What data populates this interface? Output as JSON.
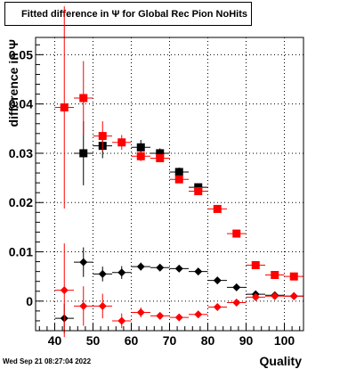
{
  "title": "Fitted difference in  Ψ  for Global Rec Pion NoHits",
  "timestamp": "Wed Sep 21 08:27:04 2022",
  "chart_data": {
    "type": "scatter",
    "xlabel": "Quality",
    "ylabel": "difference in Ψ",
    "xlim": [
      35,
      105
    ],
    "ylim": [
      -0.006,
      0.0535
    ],
    "xticks": [
      40,
      50,
      60,
      70,
      80,
      90,
      100
    ],
    "yticks": [
      0,
      0.01,
      0.02,
      0.03,
      0.04,
      0.05
    ],
    "ytick_labels": [
      "0",
      "0.01",
      "0.02",
      "0.03",
      "0.04",
      "0.05"
    ],
    "grid": true,
    "series": [
      {
        "color": "#000000",
        "marker": "square",
        "x": [
          47.5,
          52.5,
          62.5,
          67.5,
          72.5,
          77.5
        ],
        "y": [
          0.03,
          0.0315,
          0.0312,
          0.03,
          0.0262,
          0.0231
        ],
        "yerr": [
          0.0065,
          0.0025,
          0.0015,
          0.001,
          0.0009,
          0.0007
        ]
      },
      {
        "color": "#ff0000",
        "marker": "square",
        "x": [
          42.5,
          47.5,
          52.5,
          57.5,
          62.5,
          67.5,
          72.5,
          77.5,
          82.5,
          87.5,
          92.5,
          97.5,
          102.5
        ],
        "y": [
          0.0393,
          0.0412,
          0.0335,
          0.0322,
          0.0294,
          0.029,
          0.0247,
          0.0223,
          0.0187,
          0.0137,
          0.0073,
          0.0053,
          0.005
        ],
        "yerr": [
          0.0205,
          0.0075,
          0.003,
          0.0015,
          0.001,
          0.0008,
          0.0006,
          0.0005,
          0.0004,
          0.0004,
          0.0003,
          0.0003,
          0.0003
        ]
      },
      {
        "color": "#000000",
        "marker": "diamond",
        "x": [
          42.5,
          47.5,
          52.5,
          57.5,
          62.5,
          67.5,
          72.5,
          77.5,
          82.5,
          87.5,
          92.5,
          97.5,
          102.5
        ],
        "y": [
          -0.0035,
          0.0079,
          0.0055,
          0.0058,
          0.007,
          0.0068,
          0.0066,
          0.006,
          0.0042,
          0.0028,
          0.0014,
          0.0012,
          0.001
        ],
        "yerr": [
          0.003,
          0.003,
          0.0015,
          0.0013,
          0.0008,
          0.0005,
          0.0004,
          0.0004,
          0.0003,
          0.0003,
          0.0002,
          0.0002,
          0.0002
        ]
      },
      {
        "color": "#ff0000",
        "marker": "diamond",
        "x": [
          42.5,
          47.5,
          52.5,
          57.5,
          62.5,
          67.5,
          72.5,
          77.5,
          82.5,
          87.5,
          92.5,
          97.5,
          102.5
        ],
        "y": [
          0.0022,
          -0.001,
          -0.001,
          -0.004,
          -0.0023,
          -0.003,
          -0.0033,
          -0.0027,
          -0.0012,
          -0.0003,
          0.0008,
          0.001,
          0.001
        ],
        "yerr": [
          0.0095,
          0.004,
          0.0025,
          0.0015,
          0.001,
          0.0006,
          0.0005,
          0.0004,
          0.0003,
          0.0003,
          0.0002,
          0.0002,
          0.0002
        ]
      }
    ]
  }
}
